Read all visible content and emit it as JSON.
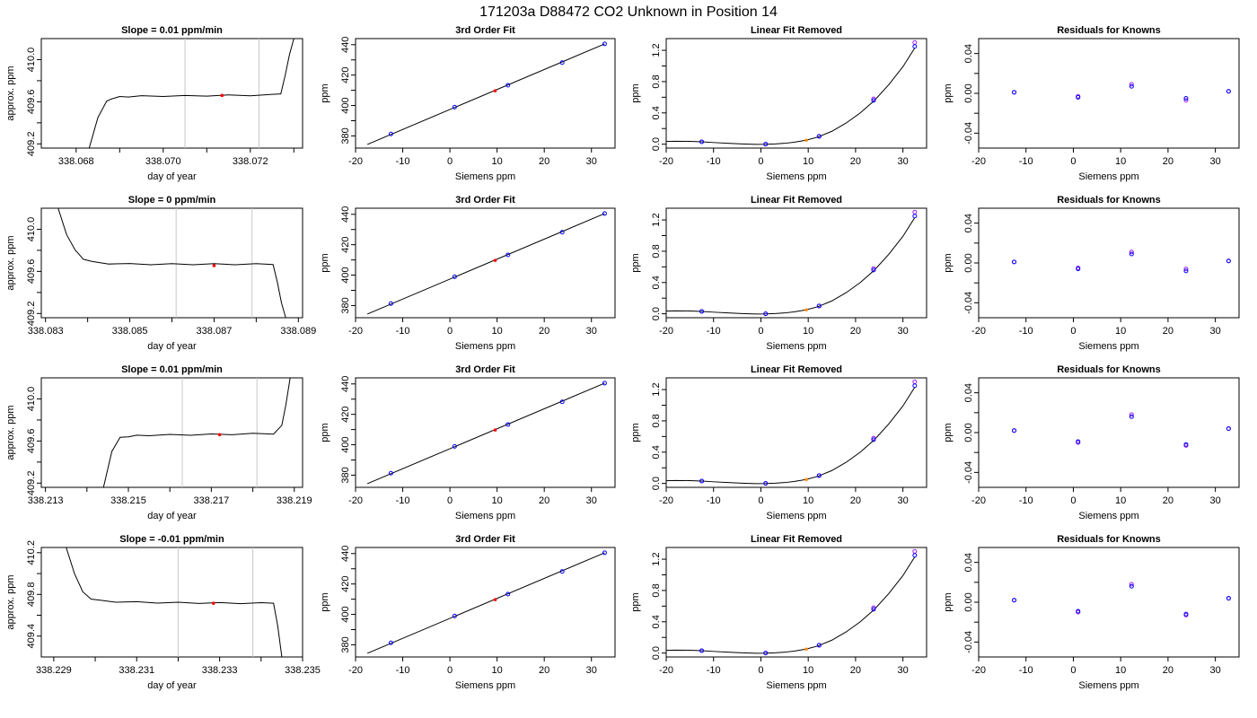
{
  "figure": {
    "title": "171203a     D88472   CO2 Unknown in Position  14",
    "colors": {
      "line": "#000000",
      "vline": "#c8c8c8",
      "blue": "#0000ff",
      "red": "#ff0000",
      "purple": "#a020f0",
      "orange": "#ff8c00"
    }
  },
  "chart_data": [
    {
      "type": "line",
      "panel": "r1c1",
      "title": "Slope =  0.01  ppm/min",
      "xlabel": "day of year",
      "ylabel": "approx. ppm",
      "xlim": [
        338.0672,
        338.0732
      ],
      "ylim": [
        409.16,
        410.2
      ],
      "xticks": [
        338.068,
        338.069,
        338.07,
        338.071,
        338.072,
        338.073
      ],
      "xtick_labels": [
        "338.068",
        "",
        "338.070",
        "",
        "338.072",
        ""
      ],
      "yticks": [
        409.2,
        409.4,
        409.6,
        409.8,
        410.0
      ],
      "ytick_labels": [
        "409.2",
        "",
        "409.6",
        "",
        "410.0"
      ],
      "vlines": [
        338.0705,
        338.0722
      ],
      "x": [
        338.0683,
        338.0685,
        338.0687,
        338.0688,
        338.069,
        338.0692,
        338.0695,
        338.07,
        338.0705,
        338.071,
        338.0715,
        338.072,
        338.0725,
        338.0727,
        338.0728,
        338.0729,
        338.073
      ],
      "y": [
        409.16,
        409.45,
        409.6,
        409.63,
        409.645,
        409.65,
        409.652,
        409.655,
        409.655,
        409.658,
        409.66,
        409.662,
        409.665,
        409.68,
        409.85,
        410.05,
        410.2
      ],
      "marker": {
        "x": 338.07135,
        "y": 409.66
      }
    },
    {
      "type": "line",
      "panel": "r2c1",
      "title": "Slope =  0  ppm/min",
      "xlabel": "day of year",
      "ylabel": "approx. ppm",
      "xlim": [
        338.0829,
        338.0891
      ],
      "ylim": [
        409.16,
        410.2
      ],
      "xticks": [
        338.083,
        338.084,
        338.085,
        338.086,
        338.087,
        338.088,
        338.089
      ],
      "xtick_labels": [
        "338.083",
        "",
        "338.085",
        "",
        "338.087",
        "",
        "338.089"
      ],
      "yticks": [
        409.2,
        409.4,
        409.6,
        409.8,
        410.0
      ],
      "ytick_labels": [
        "409.2",
        "",
        "409.6",
        "",
        "410.0"
      ],
      "vlines": [
        338.0861,
        338.0879
      ],
      "x": [
        338.0833,
        338.0835,
        338.0837,
        338.0839,
        338.0841,
        338.0845,
        338.085,
        338.0855,
        338.086,
        338.0865,
        338.087,
        338.0875,
        338.088,
        338.0884,
        338.0885,
        338.0886,
        338.0887
      ],
      "y": [
        410.2,
        409.95,
        409.8,
        409.72,
        409.69,
        409.675,
        409.67,
        409.668,
        409.668,
        409.668,
        409.668,
        409.668,
        409.668,
        409.67,
        409.5,
        409.3,
        409.16
      ],
      "marker": {
        "x": 338.087,
        "y": 409.655
      }
    },
    {
      "type": "line",
      "panel": "r3c1",
      "title": "Slope =  0.01  ppm/min",
      "xlabel": "day of year",
      "ylabel": "approx. ppm",
      "xlim": [
        338.2129,
        338.2192
      ],
      "ylim": [
        409.16,
        410.2
      ],
      "xticks": [
        338.213,
        338.214,
        338.215,
        338.216,
        338.217,
        338.218,
        338.219
      ],
      "xtick_labels": [
        "338.213",
        "",
        "338.215",
        "",
        "338.217",
        "",
        "338.219"
      ],
      "yticks": [
        409.2,
        409.4,
        409.6,
        409.8,
        410.0
      ],
      "ytick_labels": [
        "409.2",
        "",
        "409.6",
        "",
        "410.0"
      ],
      "vlines": [
        338.2163,
        338.2181
      ],
      "x": [
        338.2144,
        338.2146,
        338.2148,
        338.215,
        338.2152,
        338.2155,
        338.216,
        338.2165,
        338.217,
        338.2175,
        338.218,
        338.2185,
        338.2187,
        338.2188,
        338.2189
      ],
      "y": [
        409.16,
        409.5,
        409.63,
        409.645,
        409.65,
        409.655,
        409.658,
        409.66,
        409.662,
        409.665,
        409.668,
        409.67,
        409.75,
        409.95,
        410.2
      ],
      "marker": {
        "x": 338.2172,
        "y": 409.66
      }
    },
    {
      "type": "line",
      "panel": "r4c1",
      "title": "Slope =  -0.01  ppm/min",
      "xlabel": "day of year",
      "ylabel": "approx. ppm",
      "xlim": [
        338.2287,
        338.235
      ],
      "ylim": [
        409.2,
        410.25
      ],
      "xticks": [
        338.229,
        338.23,
        338.231,
        338.232,
        338.233,
        338.234,
        338.235
      ],
      "xtick_labels": [
        "338.229",
        "",
        "338.231",
        "",
        "338.233",
        "",
        "338.235"
      ],
      "yticks": [
        409.4,
        409.6,
        409.8,
        410.0,
        410.2
      ],
      "ytick_labels": [
        "409.4",
        "",
        "409.8",
        "",
        "410.2"
      ],
      "vlines": [
        338.232,
        338.2338
      ],
      "x": [
        338.2293,
        338.2295,
        338.2297,
        338.2299,
        338.2301,
        338.2305,
        338.231,
        338.2315,
        338.232,
        338.2325,
        338.233,
        338.2335,
        338.234,
        338.2343,
        338.2344,
        338.2345
      ],
      "y": [
        410.25,
        410.0,
        409.82,
        409.76,
        409.74,
        409.73,
        409.725,
        409.722,
        409.72,
        409.718,
        409.717,
        409.716,
        409.715,
        409.715,
        409.5,
        409.2
      ],
      "marker": {
        "x": 338.23285,
        "y": 409.715
      }
    },
    {
      "type": "scatter",
      "panel": "c2",
      "title": "3rd Order Fit",
      "xlabel": "Siemens ppm",
      "ylabel": "ppm",
      "xlim": [
        -20,
        35
      ],
      "ylim": [
        372,
        444
      ],
      "xticks": [
        -20,
        -10,
        0,
        10,
        20,
        30
      ],
      "xtick_labels": [
        "-20",
        "-10",
        "0",
        "10",
        "20",
        "30"
      ],
      "yticks": [
        380,
        390,
        400,
        410,
        420,
        430,
        440
      ],
      "ytick_labels": [
        "380",
        "",
        "400",
        "",
        "420",
        "",
        "440"
      ],
      "fit_line": {
        "x": [
          -17.5,
          32.8
        ],
        "y": [
          374.4,
          440.5
        ]
      },
      "knowns": {
        "x": [
          -12.5,
          1.0,
          12.3,
          23.8,
          32.8
        ],
        "y": [
          381.3,
          398.9,
          413.3,
          428.2,
          440.5
        ]
      },
      "unknown": {
        "x": 9.6,
        "y": 409.7
      }
    },
    {
      "type": "scatter",
      "panel": "c3",
      "title": "Linear Fit Removed",
      "xlabel": "Siemens ppm",
      "ylabel": "ppm",
      "xlim": [
        -20,
        35
      ],
      "ylim": [
        -0.05,
        1.35
      ],
      "xticks": [
        -20,
        -10,
        0,
        10,
        20,
        30
      ],
      "xtick_labels": [
        "-20",
        "-10",
        "0",
        "10",
        "20",
        "30"
      ],
      "yticks": [
        0.0,
        0.2,
        0.4,
        0.6,
        0.8,
        1.0,
        1.2
      ],
      "ytick_labels": [
        "0.0",
        "",
        "0.4",
        "",
        "0.8",
        "",
        "1.2"
      ],
      "curve": {
        "x": [
          -20,
          -18,
          -15,
          -12.5,
          -10,
          -7,
          -4,
          -1,
          1,
          3,
          5,
          7,
          9.5,
          12,
          15,
          18,
          21,
          24,
          27,
          30,
          32.5
        ],
        "y": [
          0.035,
          0.038,
          0.036,
          0.03,
          0.021,
          0.011,
          0.003,
          -0.002,
          -0.001,
          0.003,
          0.011,
          0.025,
          0.05,
          0.09,
          0.165,
          0.27,
          0.4,
          0.56,
          0.76,
          0.99,
          1.23
        ]
      },
      "knowns": {
        "x": [
          -12.5,
          1.0,
          12.3,
          23.8,
          32.5
        ],
        "y": [
          0.03,
          0.0,
          0.1,
          0.56,
          1.25
        ]
      },
      "knowns_alt": {
        "x": [
          -12.5,
          1.0,
          12.3,
          23.8,
          32.5
        ],
        "y": [
          0.03,
          0.0,
          0.1,
          0.58,
          1.3
        ]
      },
      "unknown": {
        "x": 9.6,
        "y": 0.05
      }
    },
    {
      "type": "scatter",
      "panel": "c4",
      "title": "Residuals for Knowns",
      "xlabel": "Siemens ppm",
      "ylabel": "ppm",
      "xlim": [
        -20,
        35
      ],
      "ylim": [
        -0.055,
        0.055
      ],
      "xticks": [
        -20,
        -10,
        0,
        10,
        20,
        30
      ],
      "xtick_labels": [
        "-20",
        "-10",
        "0",
        "10",
        "20",
        "30"
      ],
      "yticks": [
        -0.04,
        -0.02,
        0.0,
        0.02,
        0.04
      ],
      "ytick_labels": [
        "-0.04",
        "",
        "0.00",
        "",
        "0.04"
      ],
      "rows": [
        {
          "x": [
            -12.5,
            1.0,
            12.3,
            23.8,
            32.8
          ],
          "y": [
            0.001,
            -0.004,
            0.007,
            -0.005,
            0.002
          ],
          "y_alt": [
            0.001,
            -0.003,
            0.009,
            -0.007,
            0.002
          ]
        },
        {
          "x": [
            -12.5,
            1.0,
            12.3,
            23.8,
            32.8
          ],
          "y": [
            0.001,
            -0.006,
            0.009,
            -0.008,
            0.002
          ],
          "y_alt": [
            0.001,
            -0.005,
            0.011,
            -0.006,
            0.002
          ]
        },
        {
          "x": [
            -12.5,
            1.0,
            12.3,
            23.8,
            32.8
          ],
          "y": [
            0.002,
            -0.009,
            0.016,
            -0.012,
            0.004
          ],
          "y_alt": [
            0.002,
            -0.01,
            0.018,
            -0.013,
            0.004
          ]
        },
        {
          "x": [
            -12.5,
            1.0,
            12.3,
            23.8,
            32.8
          ],
          "y": [
            0.002,
            -0.009,
            0.016,
            -0.012,
            0.004
          ],
          "y_alt": [
            0.002,
            -0.01,
            0.018,
            -0.013,
            0.004
          ]
        }
      ]
    }
  ]
}
